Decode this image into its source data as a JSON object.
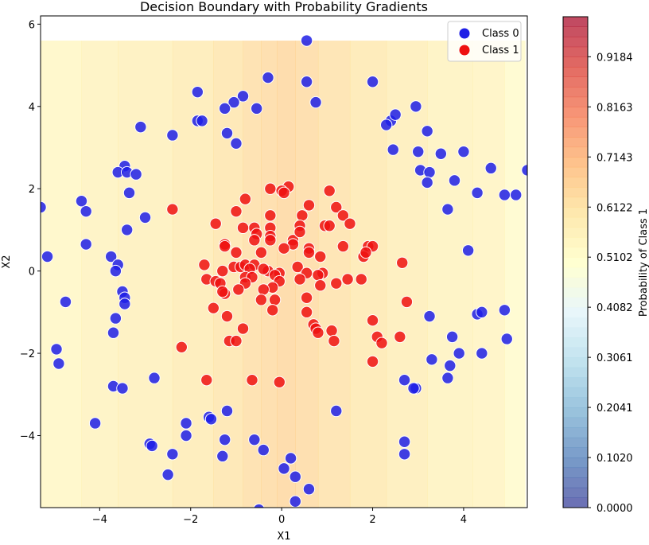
{
  "chart_data": {
    "type": "scatter",
    "title": "Decision Boundary with Probability Gradients",
    "xlabel": "X1",
    "ylabel": "X2",
    "xlim": [
      -5.3,
      5.4
    ],
    "ylim": [
      -5.75,
      6.2
    ],
    "xticks": [
      -4,
      -2,
      0,
      2,
      4
    ],
    "yticks": [
      -4,
      -2,
      0,
      2,
      4,
      6
    ],
    "xtick_labels": [
      "−4",
      "−2",
      "0",
      "2",
      "4"
    ],
    "ytick_labels": [
      "−4",
      "−2",
      "0",
      "2",
      "4",
      "6"
    ],
    "grid": false,
    "legend_position": "top-right",
    "colorbar": {
      "label": "Probability of Class 1",
      "range": [
        0,
        1
      ],
      "ticks": [
        "0.0000",
        "0.1020",
        "0.2041",
        "0.3061",
        "0.4082",
        "0.5102",
        "0.6122",
        "0.7143",
        "0.8163",
        "0.9184"
      ],
      "colormap": "RdYlBu_r"
    },
    "background": {
      "x_range": [
        -5.3,
        5.35
      ],
      "y_range": [
        -5.75,
        5.6
      ],
      "x_breaks": [
        -5.3,
        -4.4,
        -3.6,
        -2.4,
        -1.5,
        -0.85,
        -0.45,
        -0.1,
        0.3,
        0.8,
        1.5,
        2.3,
        3.2,
        4.2,
        4.9,
        5.35
      ],
      "probs": [
        0.54,
        0.56,
        0.57,
        0.59,
        0.61,
        0.63,
        0.64,
        0.65,
        0.64,
        0.62,
        0.6,
        0.58,
        0.56,
        0.55,
        0.52
      ]
    },
    "series": [
      {
        "name": "Class 0",
        "color": "#1f1fe6",
        "points": [
          [
            0.55,
            5.6
          ],
          [
            0.55,
            4.6
          ],
          [
            0.75,
            4.1
          ],
          [
            -0.3,
            4.7
          ],
          [
            -0.85,
            4.25
          ],
          [
            -1.05,
            4.1
          ],
          [
            -1.25,
            3.95
          ],
          [
            -0.55,
            3.95
          ],
          [
            -1.85,
            4.35
          ],
          [
            -1.85,
            3.65
          ],
          [
            -1.75,
            3.65
          ],
          [
            -1.2,
            3.35
          ],
          [
            -1.0,
            3.1
          ],
          [
            -3.1,
            3.5
          ],
          [
            -2.4,
            3.3
          ],
          [
            -3.45,
            2.55
          ],
          [
            -3.6,
            2.4
          ],
          [
            -3.4,
            2.4
          ],
          [
            -3.2,
            2.35
          ],
          [
            -3.35,
            1.9
          ],
          [
            -3.0,
            1.3
          ],
          [
            -3.4,
            1.0
          ],
          [
            -4.4,
            1.7
          ],
          [
            -4.3,
            1.45
          ],
          [
            -5.3,
            1.55
          ],
          [
            -4.3,
            0.65
          ],
          [
            -5.15,
            0.35
          ],
          [
            -3.75,
            0.35
          ],
          [
            -3.6,
            0.15
          ],
          [
            -3.65,
            0.0
          ],
          [
            -3.5,
            -0.5
          ],
          [
            -3.45,
            -0.65
          ],
          [
            -3.45,
            -0.8
          ],
          [
            -4.75,
            -0.75
          ],
          [
            -3.65,
            -1.15
          ],
          [
            -3.7,
            -1.5
          ],
          [
            -4.95,
            -1.9
          ],
          [
            -4.9,
            -2.25
          ],
          [
            -3.7,
            -2.8
          ],
          [
            -3.5,
            -2.85
          ],
          [
            -2.8,
            -2.6
          ],
          [
            -4.1,
            -3.7
          ],
          [
            -2.1,
            -3.7
          ],
          [
            -1.6,
            -3.55
          ],
          [
            -1.55,
            -3.6
          ],
          [
            -1.2,
            -3.4
          ],
          [
            -2.1,
            -4.0
          ],
          [
            -2.9,
            -4.2
          ],
          [
            -2.85,
            -4.25
          ],
          [
            -2.4,
            -4.45
          ],
          [
            -2.5,
            -4.95
          ],
          [
            -1.3,
            -4.5
          ],
          [
            -1.25,
            -4.1
          ],
          [
            -0.6,
            -4.1
          ],
          [
            -0.4,
            -4.35
          ],
          [
            -0.5,
            -5.8
          ],
          [
            0.2,
            -4.55
          ],
          [
            0.05,
            -4.8
          ],
          [
            0.3,
            -5.0
          ],
          [
            0.6,
            -5.3
          ],
          [
            0.3,
            -5.6
          ],
          [
            1.2,
            -3.4
          ],
          [
            2.0,
            4.6
          ],
          [
            2.4,
            3.65
          ],
          [
            2.5,
            3.8
          ],
          [
            2.3,
            3.55
          ],
          [
            2.95,
            4.0
          ],
          [
            3.2,
            3.4
          ],
          [
            2.45,
            2.95
          ],
          [
            3.0,
            2.9
          ],
          [
            3.5,
            2.85
          ],
          [
            4.0,
            2.9
          ],
          [
            3.05,
            2.45
          ],
          [
            3.25,
            2.4
          ],
          [
            3.2,
            2.15
          ],
          [
            3.8,
            2.2
          ],
          [
            4.6,
            2.5
          ],
          [
            5.4,
            2.45
          ],
          [
            4.3,
            1.9
          ],
          [
            4.9,
            1.85
          ],
          [
            5.15,
            1.85
          ],
          [
            3.65,
            1.5
          ],
          [
            4.1,
            0.5
          ],
          [
            4.3,
            -1.05
          ],
          [
            4.4,
            -1.0
          ],
          [
            4.9,
            -0.95
          ],
          [
            3.25,
            -1.1
          ],
          [
            3.75,
            -1.6
          ],
          [
            4.95,
            -1.65
          ],
          [
            3.9,
            -2.0
          ],
          [
            4.4,
            -2.0
          ],
          [
            3.3,
            -2.15
          ],
          [
            3.7,
            -2.3
          ],
          [
            3.65,
            -2.6
          ],
          [
            2.7,
            -2.65
          ],
          [
            2.95,
            -2.85
          ],
          [
            2.9,
            -2.85
          ],
          [
            2.7,
            -4.15
          ],
          [
            2.7,
            -4.45
          ]
        ]
      },
      {
        "name": "Class 1",
        "color": "#ee1111",
        "points": [
          [
            -0.25,
            2.0
          ],
          [
            0.15,
            2.05
          ],
          [
            0.0,
            1.95
          ],
          [
            0.05,
            1.9
          ],
          [
            1.05,
            1.95
          ],
          [
            -0.8,
            1.75
          ],
          [
            0.6,
            1.6
          ],
          [
            1.2,
            1.55
          ],
          [
            0.45,
            1.35
          ],
          [
            1.35,
            1.35
          ],
          [
            -1.0,
            1.45
          ],
          [
            -0.25,
            1.35
          ],
          [
            -1.45,
            1.15
          ],
          [
            -0.6,
            1.05
          ],
          [
            -0.25,
            1.05
          ],
          [
            1.5,
            1.15
          ],
          [
            0.95,
            1.1
          ],
          [
            1.05,
            1.1
          ],
          [
            -0.85,
            1.05
          ],
          [
            -0.55,
            0.9
          ],
          [
            -0.6,
            0.75
          ],
          [
            -0.25,
            0.85
          ],
          [
            0.25,
            0.75
          ],
          [
            0.25,
            0.65
          ],
          [
            -0.25,
            0.75
          ],
          [
            -1.25,
            0.65
          ],
          [
            -1.25,
            0.6
          ],
          [
            -1.0,
            0.45
          ],
          [
            -0.45,
            0.45
          ],
          [
            0.4,
            1.1
          ],
          [
            0.6,
            0.55
          ],
          [
            0.6,
            0.45
          ],
          [
            0.85,
            0.35
          ],
          [
            1.35,
            0.6
          ],
          [
            1.9,
            0.6
          ],
          [
            2.0,
            0.6
          ],
          [
            1.8,
            0.35
          ],
          [
            1.85,
            0.45
          ],
          [
            0.05,
            0.55
          ],
          [
            -1.7,
            0.15
          ],
          [
            -1.05,
            0.1
          ],
          [
            -0.9,
            0.1
          ],
          [
            -0.8,
            0.15
          ],
          [
            -0.6,
            0.15
          ],
          [
            0.35,
            0.1
          ],
          [
            -0.7,
            0.05
          ],
          [
            -0.3,
            0.0
          ],
          [
            -1.3,
            0.0
          ],
          [
            -0.4,
            0.05
          ],
          [
            -0.05,
            -0.05
          ],
          [
            -0.15,
            -0.1
          ],
          [
            0.55,
            -0.05
          ],
          [
            0.9,
            -0.05
          ],
          [
            0.8,
            -0.1
          ],
          [
            -1.65,
            -0.2
          ],
          [
            -1.45,
            -0.25
          ],
          [
            -1.35,
            -0.3
          ],
          [
            -0.8,
            -0.15
          ],
          [
            -0.65,
            -0.15
          ],
          [
            -0.05,
            -0.25
          ],
          [
            -0.2,
            -0.4
          ],
          [
            1.2,
            -0.3
          ],
          [
            1.45,
            -0.2
          ],
          [
            1.75,
            -0.2
          ],
          [
            0.4,
            -0.2
          ],
          [
            0.85,
            -0.35
          ],
          [
            -0.8,
            -0.3
          ],
          [
            -1.25,
            -0.55
          ],
          [
            -1.3,
            -0.5
          ],
          [
            -0.95,
            -0.45
          ],
          [
            -0.4,
            -0.45
          ],
          [
            -0.45,
            -0.7
          ],
          [
            -0.15,
            -0.7
          ],
          [
            0.55,
            -0.65
          ],
          [
            -1.5,
            -0.9
          ],
          [
            -1.2,
            -1.1
          ],
          [
            -0.2,
            -0.95
          ],
          [
            0.55,
            -1.0
          ],
          [
            0.7,
            -1.3
          ],
          [
            0.75,
            -1.4
          ],
          [
            0.8,
            -1.5
          ],
          [
            -0.85,
            -1.4
          ],
          [
            1.1,
            -1.45
          ],
          [
            1.15,
            -1.7
          ],
          [
            -1.15,
            -1.7
          ],
          [
            -1.0,
            -1.7
          ],
          [
            2.0,
            -1.2
          ],
          [
            2.1,
            -1.6
          ],
          [
            2.2,
            -1.75
          ],
          [
            2.6,
            -1.6
          ],
          [
            -2.2,
            -1.85
          ],
          [
            2.0,
            -2.2
          ],
          [
            -1.65,
            -2.65
          ],
          [
            -0.65,
            -2.65
          ],
          [
            -0.05,
            -2.7
          ],
          [
            -2.4,
            1.5
          ],
          [
            2.65,
            0.2
          ],
          [
            2.75,
            -0.75
          ],
          [
            0.4,
            0.95
          ]
        ]
      }
    ]
  }
}
